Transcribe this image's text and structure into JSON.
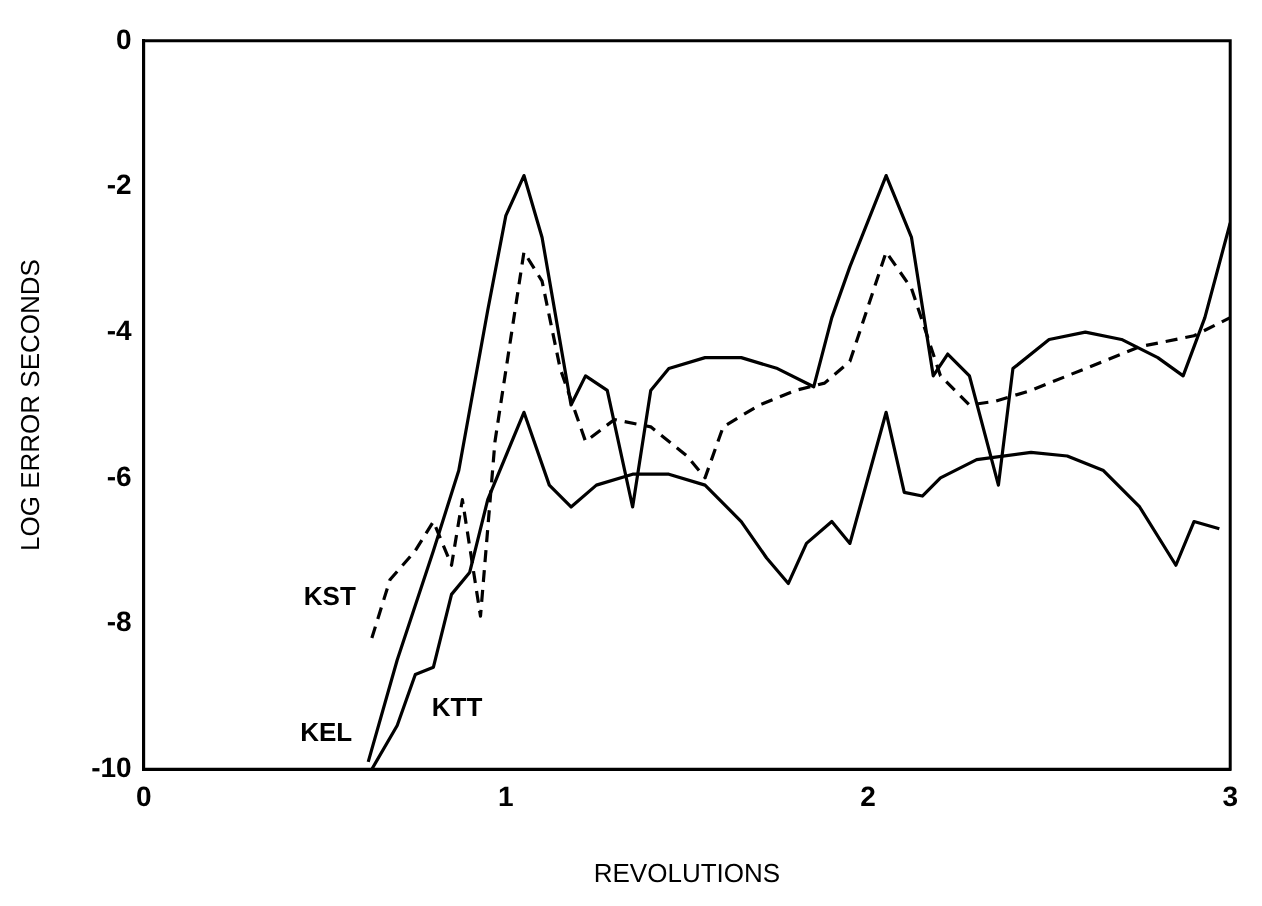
{
  "chart_data": {
    "type": "line",
    "xlabel": "REVOLUTIONS",
    "ylabel": "LOG ERROR SECONDS",
    "xlim": [
      0,
      3
    ],
    "ylim": [
      -10,
      0
    ],
    "xticks": [
      0,
      1,
      2,
      3
    ],
    "yticks": [
      -10,
      -8,
      -6,
      -4,
      -2,
      0
    ],
    "grid": false,
    "legend": false,
    "marker": "none",
    "series": [
      {
        "name": "KST",
        "color": "#000000",
        "line_style": "dashed",
        "x": [
          0.63,
          0.68,
          0.75,
          0.8,
          0.85,
          0.88,
          0.93,
          0.97,
          1.05,
          1.1,
          1.15,
          1.22,
          1.3,
          1.4,
          1.5,
          1.55,
          1.6,
          1.7,
          1.8,
          1.88,
          1.95,
          2.05,
          2.12,
          2.2,
          2.28,
          2.35,
          2.45,
          2.6,
          2.75,
          2.9,
          3.0
        ],
        "values": [
          -8.2,
          -7.4,
          -7.0,
          -6.6,
          -7.2,
          -6.3,
          -7.9,
          -5.5,
          -2.9,
          -3.3,
          -4.5,
          -5.5,
          -5.2,
          -5.3,
          -5.7,
          -6.0,
          -5.3,
          -5.0,
          -4.8,
          -4.7,
          -4.4,
          -2.9,
          -3.4,
          -4.6,
          -5.0,
          -4.95,
          -4.8,
          -4.5,
          -4.2,
          -4.05,
          -3.8
        ]
      },
      {
        "name": "KEL",
        "color": "#000000",
        "line_style": "solid",
        "x": [
          0.62,
          0.7,
          0.8,
          0.87,
          0.95,
          1.0,
          1.05,
          1.1,
          1.18,
          1.22,
          1.28,
          1.35,
          1.4,
          1.45,
          1.55,
          1.65,
          1.75,
          1.85,
          1.9,
          1.95,
          2.05,
          2.12,
          2.18,
          2.22,
          2.28,
          2.36,
          2.4,
          2.5,
          2.6,
          2.7,
          2.8,
          2.87,
          2.93,
          3.0
        ],
        "values": [
          -9.9,
          -8.5,
          -7.0,
          -5.9,
          -3.7,
          -2.4,
          -1.85,
          -2.7,
          -5.0,
          -4.6,
          -4.8,
          -6.4,
          -4.8,
          -4.5,
          -4.35,
          -4.35,
          -4.5,
          -4.75,
          -3.8,
          -3.1,
          -1.85,
          -2.7,
          -4.6,
          -4.3,
          -4.6,
          -6.1,
          -4.5,
          -4.1,
          -4.0,
          -4.1,
          -4.35,
          -4.6,
          -3.8,
          -2.5
        ]
      },
      {
        "name": "KTT",
        "color": "#000000",
        "line_style": "solid",
        "x": [
          0.63,
          0.7,
          0.75,
          0.8,
          0.85,
          0.9,
          0.95,
          1.05,
          1.12,
          1.18,
          1.25,
          1.35,
          1.45,
          1.55,
          1.65,
          1.72,
          1.78,
          1.83,
          1.9,
          1.95,
          2.05,
          2.1,
          2.15,
          2.2,
          2.3,
          2.45,
          2.55,
          2.65,
          2.75,
          2.85,
          2.9,
          2.97
        ],
        "values": [
          -10,
          -9.4,
          -8.7,
          -8.6,
          -7.6,
          -7.3,
          -6.3,
          -5.1,
          -6.1,
          -6.4,
          -6.1,
          -5.95,
          -5.95,
          -6.1,
          -6.6,
          -7.1,
          -7.45,
          -6.9,
          -6.6,
          -6.9,
          -5.1,
          -6.2,
          -6.25,
          -6.0,
          -5.75,
          -5.65,
          -5.7,
          -5.9,
          -6.4,
          -7.2,
          -6.6,
          -6.7
        ]
      }
    ]
  }
}
